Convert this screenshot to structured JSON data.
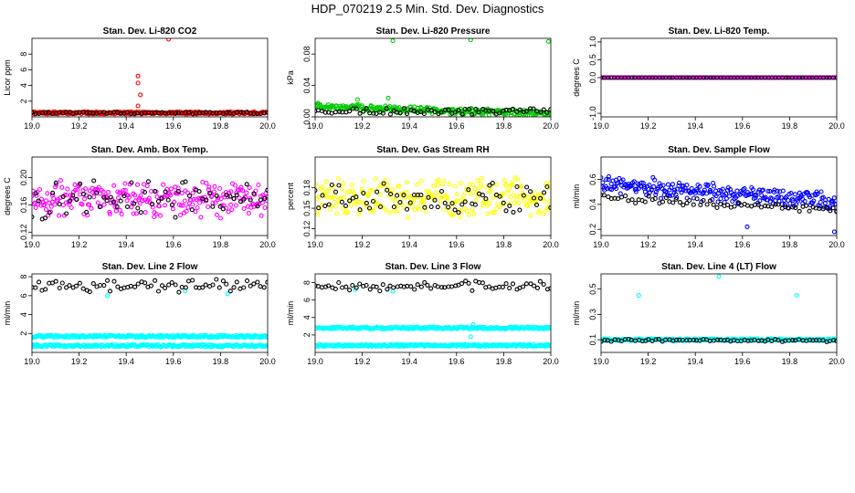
{
  "figure": {
    "title": "HDP_070219  2.5 Min. Std. Dev. Diagnostics"
  },
  "chart_data": [
    {
      "type": "scatter",
      "title": "Stan. Dev. Li-820 CO2",
      "ylabel": "Licor ppm",
      "xlim": [
        19.0,
        20.0
      ],
      "ylim": [
        0,
        10
      ],
      "xticks": [
        "19.0",
        "19.2",
        "19.4",
        "19.6",
        "19.8",
        "20.0"
      ],
      "yticks": [
        2,
        4,
        6,
        8
      ],
      "ytick_labels": [
        "2",
        "4",
        "6",
        "8"
      ],
      "series": [
        {
          "name": "red",
          "color": "#ff0000",
          "pattern": {
            "kind": "band",
            "base": 0.5,
            "spread": 0.15
          },
          "outliers": [
            {
              "x": 19.45,
              "y": 5.2
            },
            {
              "x": 19.45,
              "y": 4.3
            },
            {
              "x": 19.46,
              "y": 2.8
            },
            {
              "x": 19.45,
              "y": 1.4
            },
            {
              "x": 19.58,
              "y": 9.9
            }
          ]
        },
        {
          "name": "black",
          "color": "#000000",
          "pattern": {
            "kind": "sparse",
            "base": 0.5,
            "spread": 0.1
          },
          "outliers": []
        }
      ]
    },
    {
      "type": "scatter",
      "title": "Stan. Dev. Li-820 Pressure",
      "ylabel": "kPa",
      "xlim": [
        19.0,
        20.0
      ],
      "ylim": [
        0,
        0.1
      ],
      "xticks": [
        "19.0",
        "19.2",
        "19.4",
        "19.6",
        "19.8",
        "20.0"
      ],
      "yticks": [
        0.0,
        0.04,
        0.08
      ],
      "ytick_labels": [
        "0.00",
        "0.04",
        "0.08"
      ],
      "series": [
        {
          "name": "green",
          "color": "#00cc00",
          "pattern": {
            "kind": "trend",
            "start": 0.013,
            "end": 0.004,
            "spread": 0.005
          },
          "outliers": [
            {
              "x": 19.33,
              "y": 0.097
            },
            {
              "x": 19.66,
              "y": 0.098
            },
            {
              "x": 19.99,
              "y": 0.096
            },
            {
              "x": 19.18,
              "y": 0.022
            },
            {
              "x": 19.31,
              "y": 0.024
            }
          ]
        },
        {
          "name": "black",
          "color": "#000000",
          "pattern": {
            "kind": "sparse",
            "base": 0.007,
            "spread": 0.004
          },
          "outliers": []
        }
      ]
    },
    {
      "type": "scatter",
      "title": "Stan. Dev. Li-820 Temp.",
      "ylabel": "degrees C",
      "xlim": [
        19.0,
        20.0
      ],
      "ylim": [
        -1.1,
        1.1
      ],
      "xticks": [
        "19.0",
        "19.2",
        "19.4",
        "19.6",
        "19.8",
        "20.0"
      ],
      "yticks": [
        -1.0,
        0.0,
        0.5,
        1.0
      ],
      "ytick_labels": [
        "-1.0",
        "0.0",
        "0.5",
        "1.0"
      ],
      "series": [
        {
          "name": "magenta",
          "color": "#ff00ff",
          "pattern": {
            "kind": "flat",
            "base": 0.0,
            "spread": 0.0
          },
          "outliers": []
        },
        {
          "name": "black",
          "color": "#000000",
          "pattern": {
            "kind": "flatsparse",
            "base": 0.0,
            "spread": 0.0
          },
          "outliers": []
        }
      ]
    },
    {
      "type": "scatter",
      "title": "Stan. Dev. Amb. Box Temp.",
      "ylabel": "degrees C",
      "xlim": [
        19.0,
        20.0
      ],
      "ylim": [
        0.115,
        0.23
      ],
      "xticks": [
        "19.0",
        "19.2",
        "19.4",
        "19.6",
        "19.8",
        "20.0"
      ],
      "yticks": [
        0.12,
        0.16,
        0.2
      ],
      "ytick_labels": [
        "0.12",
        "0.16",
        "0.20"
      ],
      "series": [
        {
          "name": "magenta",
          "color": "#ff00ff",
          "pattern": {
            "kind": "noise",
            "base": 0.168,
            "spread": 0.022
          },
          "outliers": []
        },
        {
          "name": "black",
          "color": "#000000",
          "pattern": {
            "kind": "noisesparse",
            "base": 0.168,
            "spread": 0.025
          },
          "outliers": []
        }
      ]
    },
    {
      "type": "scatter",
      "title": "Stan. Dev. Gas Stream RH",
      "ylabel": "percent",
      "xlim": [
        19.0,
        20.0
      ],
      "ylim": [
        0.11,
        0.225
      ],
      "xticks": [
        "19.0",
        "19.2",
        "19.4",
        "19.6",
        "19.8",
        "20.0"
      ],
      "yticks": [
        0.12,
        0.15,
        0.18
      ],
      "ytick_labels": [
        "0.12",
        "0.15",
        "0.18"
      ],
      "series": [
        {
          "name": "yellow",
          "color": "#ffff00",
          "pattern": {
            "kind": "noise",
            "base": 0.165,
            "spread": 0.025
          },
          "outliers": []
        },
        {
          "name": "black",
          "color": "#000000",
          "pattern": {
            "kind": "noisesparse",
            "base": 0.165,
            "spread": 0.02
          },
          "outliers": []
        }
      ]
    },
    {
      "type": "scatter",
      "title": "Stan. Dev. Sample Flow",
      "ylabel": "ml/min",
      "xlim": [
        19.0,
        20.0
      ],
      "ylim": [
        0.15,
        0.78
      ],
      "xticks": [
        "19.0",
        "19.2",
        "19.4",
        "19.6",
        "19.8",
        "20.0"
      ],
      "yticks": [
        0.2,
        0.4,
        0.6
      ],
      "ytick_labels": [
        "0.2",
        "0.4",
        "0.6"
      ],
      "series": [
        {
          "name": "blue",
          "color": "#0000ff",
          "pattern": {
            "kind": "trend",
            "start": 0.56,
            "end": 0.42,
            "spread": 0.09
          },
          "outliers": [
            {
              "x": 19.99,
              "y": 0.18
            },
            {
              "x": 19.62,
              "y": 0.22
            }
          ]
        },
        {
          "name": "black",
          "color": "#000000",
          "pattern": {
            "kind": "trendsparse",
            "start": 0.45,
            "end": 0.36,
            "spread": 0.04
          },
          "outliers": []
        }
      ]
    },
    {
      "type": "scatter",
      "title": "Stan. Dev. Line 2 Flow",
      "ylabel": "ml/min",
      "xlim": [
        19.0,
        20.0
      ],
      "ylim": [
        0.0,
        8.3
      ],
      "xticks": [
        "19.0",
        "19.2",
        "19.4",
        "19.6",
        "19.8",
        "20.0"
      ],
      "yticks": [
        2,
        4,
        6,
        8
      ],
      "ytick_labels": [
        "2",
        "4",
        "6",
        "8"
      ],
      "series": [
        {
          "name": "cyan",
          "color": "#00ffff",
          "pattern": {
            "kind": "twoband",
            "base": 1.7,
            "base2": 0.7,
            "spread": 0.12
          },
          "outliers": [
            {
              "x": 19.32,
              "y": 6.0
            },
            {
              "x": 19.65,
              "y": 6.5
            },
            {
              "x": 19.83,
              "y": 6.2
            }
          ]
        },
        {
          "name": "black",
          "color": "#000000",
          "pattern": {
            "kind": "noisesparse",
            "base": 7.0,
            "spread": 0.6
          },
          "outliers": []
        }
      ]
    },
    {
      "type": "scatter",
      "title": "Stan. Dev. Line 3 Flow",
      "ylabel": "ml/min",
      "xlim": [
        19.0,
        20.0
      ],
      "ylim": [
        0.0,
        9.0
      ],
      "xticks": [
        "19.0",
        "19.2",
        "19.4",
        "19.6",
        "19.8",
        "20.0"
      ],
      "yticks": [
        2,
        4,
        6,
        8
      ],
      "ytick_labels": [
        "2",
        "4",
        "6",
        "8"
      ],
      "series": [
        {
          "name": "cyan",
          "color": "#00ffff",
          "pattern": {
            "kind": "twoband",
            "base": 2.8,
            "base2": 0.8,
            "spread": 0.12
          },
          "outliers": [
            {
              "x": 19.66,
              "y": 1.8
            },
            {
              "x": 19.67,
              "y": 3.2
            },
            {
              "x": 19.17,
              "y": 7.2
            },
            {
              "x": 19.33,
              "y": 7.0
            }
          ]
        },
        {
          "name": "black",
          "color": "#000000",
          "pattern": {
            "kind": "noisesparse",
            "base": 7.6,
            "spread": 0.5
          },
          "outliers": []
        }
      ]
    },
    {
      "type": "scatter",
      "title": "Stan. Dev. Line 4 (LT) Flow",
      "ylabel": "ml/min",
      "xlim": [
        19.0,
        20.0
      ],
      "ylim": [
        0.0,
        0.62
      ],
      "xticks": [
        "19.0",
        "19.2",
        "19.4",
        "19.6",
        "19.8",
        "20.0"
      ],
      "yticks": [
        0.1,
        0.3,
        0.5
      ],
      "ytick_labels": [
        "0.1",
        "0.3",
        "0.5"
      ],
      "series": [
        {
          "name": "cyan",
          "color": "#00ffff",
          "pattern": {
            "kind": "band",
            "base": 0.1,
            "spread": 0.008
          },
          "outliers": [
            {
              "x": 19.16,
              "y": 0.45
            },
            {
              "x": 19.5,
              "y": 0.6
            },
            {
              "x": 19.83,
              "y": 0.45
            }
          ]
        },
        {
          "name": "black",
          "color": "#000000",
          "pattern": {
            "kind": "noisesparse",
            "base": 0.095,
            "spread": 0.01
          },
          "outliers": []
        }
      ]
    }
  ]
}
